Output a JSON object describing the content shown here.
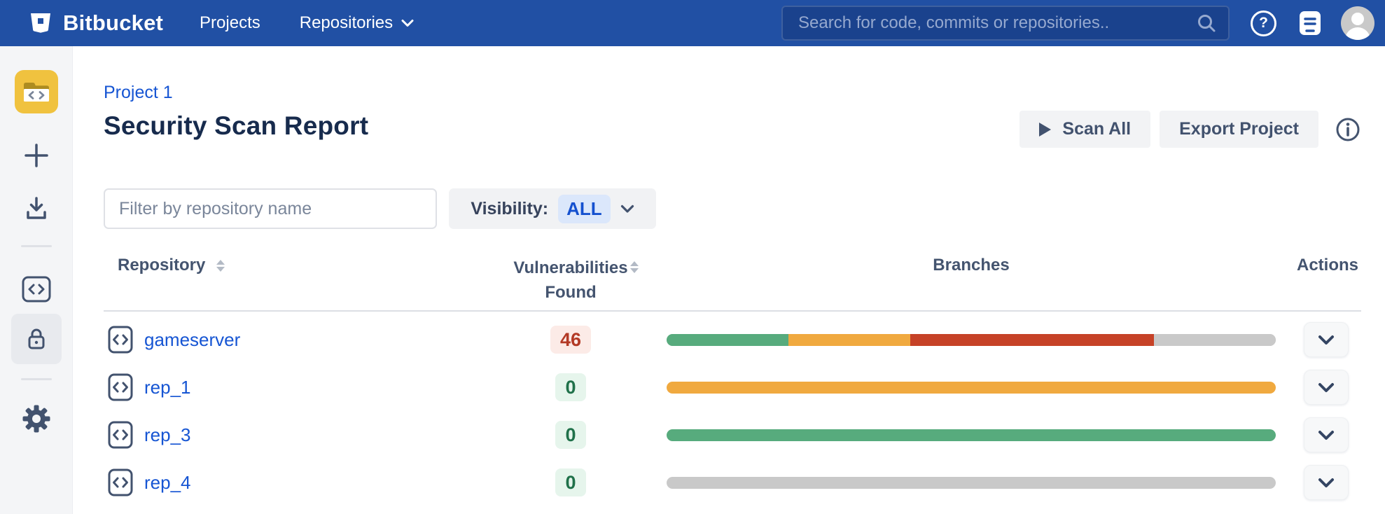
{
  "navbar": {
    "brand": "Bitbucket",
    "nav": {
      "projects": "Projects",
      "repositories": "Repositories"
    },
    "search": {
      "placeholder": "Search for code, commits or repositories.."
    },
    "help_glyph": "?",
    "icons": {
      "brand": "bitbucket-bucket",
      "repositories_caret": "chevron-down",
      "search": "magnifier",
      "help": "question-circle",
      "notifications": "notes-card",
      "account": "avatar-silhouette"
    }
  },
  "sidebar": {
    "icons": {
      "project_avatar": "folder-code",
      "create": "plus",
      "import": "download-tray",
      "source": "code-brackets",
      "security": "lock",
      "settings": "gear"
    },
    "project_avatar_colors": {
      "tile": "#f0c23f",
      "folder_back": "#ad8c20"
    },
    "selected_item": "security"
  },
  "page": {
    "breadcrumb": "Project 1",
    "title": "Security Scan Report",
    "actions": {
      "scan_all": "Scan All",
      "export_project": "Export Project"
    },
    "filter": {
      "placeholder": "Filter by repository name"
    },
    "visibility": {
      "label": "Visibility:",
      "value": "ALL"
    }
  },
  "table": {
    "headers": {
      "repository": "Repository",
      "vulnerabilities": "Vulnerabilities Found",
      "branches": "Branches",
      "actions": "Actions"
    },
    "rows": [
      {
        "name": "gameserver",
        "vulnerabilities": "46",
        "badge_style": "danger",
        "segments": [
          {
            "color": "green",
            "pct": 20
          },
          {
            "color": "orange",
            "pct": 20
          },
          {
            "color": "red",
            "pct": 40
          },
          {
            "color": "gray",
            "pct": 20
          }
        ]
      },
      {
        "name": "rep_1",
        "vulnerabilities": "0",
        "badge_style": "success",
        "segments": [
          {
            "color": "orange",
            "pct": 100
          }
        ]
      },
      {
        "name": "rep_3",
        "vulnerabilities": "0",
        "badge_style": "success",
        "segments": [
          {
            "color": "green",
            "pct": 100
          }
        ]
      },
      {
        "name": "rep_4",
        "vulnerabilities": "0",
        "badge_style": "success",
        "segments": [
          {
            "color": "gray",
            "pct": 100
          }
        ]
      }
    ]
  },
  "colors": {
    "navbar_bg": "#2150a4",
    "sidebar_bg": "#f4f5f7",
    "link_blue": "#1655d3",
    "heading": "#172b4d",
    "slate_icon": "#42526e",
    "green": "#57ab7d",
    "orange": "#f0a93f",
    "red": "#c64227",
    "gray": "#c9c9c9",
    "badge_danger_bg": "#fcebe7",
    "badge_danger_text": "#b33a26",
    "badge_success_bg": "#e6f5ec",
    "badge_success_text": "#20714a",
    "visibility_chip_bg": "#dbe7fb",
    "visibility_chip_text": "#1450cf"
  }
}
